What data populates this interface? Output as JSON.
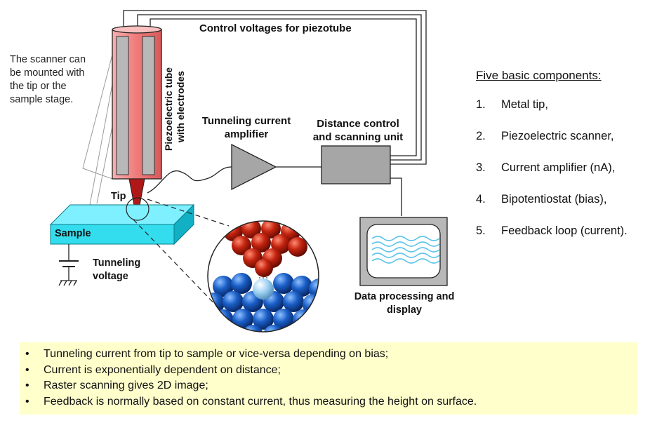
{
  "diagram": {
    "scanner_note": "The scanner can be mounted with the tip or the sample stage.",
    "piezo_label_line1": "Piezoelectric tube",
    "piezo_label_line2": "with electrodes",
    "control_voltages_label": "Control voltages for piezotube",
    "amplifier_label": "Tunneling current amplifier",
    "distance_control_label": "Distance control and scanning unit",
    "tip_label": "Tip",
    "sample_label": "Sample",
    "tunneling_voltage_label": "Tunneling voltage",
    "data_processing_label": "Data processing and display",
    "colors": {
      "piezo_tube": "#f08080",
      "electrode": "#b8b8b8",
      "tip": "#b01818",
      "sample": "#33ddee",
      "box_gray": "#a6a6a6",
      "tip_atoms": "#b81c10",
      "sample_atoms": "#1a5fb8",
      "highlight_atom": "#8ec8ee",
      "wave": "#5fc5ea"
    }
  },
  "components": {
    "title": "Five basic components:",
    "items": [
      {
        "num": "1.",
        "text": "Metal tip,"
      },
      {
        "num": "2.",
        "text": "Piezoelectric scanner,"
      },
      {
        "num": "3.",
        "text": "Current amplifier (nA),"
      },
      {
        "num": "4.",
        "text": "Bipotentiostat (bias),"
      },
      {
        "num": "5.",
        "text": "Feedback loop (current)."
      }
    ]
  },
  "notes": {
    "bullet_char": "•",
    "items": [
      "Tunneling current from tip to sample or vice-versa depending on bias;",
      "Current is exponentially dependent on distance;",
      "Raster scanning gives 2D image;",
      "Feedback is normally based on constant current, thus measuring the height on surface."
    ]
  }
}
